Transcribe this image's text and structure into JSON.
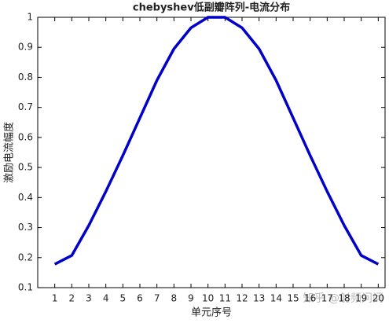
{
  "chart_data": {
    "type": "line",
    "title": "chebyshev低副瓣阵列-电流分布",
    "xlabel": "单元序号",
    "ylabel": "激励电流幅度",
    "annotation": "知乎 @射频问问",
    "x": [
      1,
      2,
      3,
      4,
      5,
      6,
      7,
      8,
      9,
      10,
      11,
      12,
      13,
      14,
      15,
      16,
      17,
      18,
      19,
      20
    ],
    "series": [
      {
        "color": "#0000c8",
        "values": [
          0.178,
          0.207,
          0.307,
          0.42,
          0.54,
          0.665,
          0.79,
          0.895,
          0.965,
          1,
          1,
          0.965,
          0.895,
          0.79,
          0.665,
          0.54,
          0.42,
          0.307,
          0.207,
          0.178
        ]
      }
    ],
    "xlim": [
      0,
      20.4
    ],
    "ylim": [
      0.1,
      1
    ],
    "xticks": [
      1,
      2,
      3,
      4,
      5,
      6,
      7,
      8,
      9,
      10,
      11,
      12,
      13,
      14,
      15,
      16,
      17,
      18,
      19,
      20
    ],
    "yticks": [
      0.1,
      0.2,
      0.3,
      0.4,
      0.5,
      0.6,
      0.7,
      0.8,
      0.9,
      1
    ],
    "grid": false
  }
}
